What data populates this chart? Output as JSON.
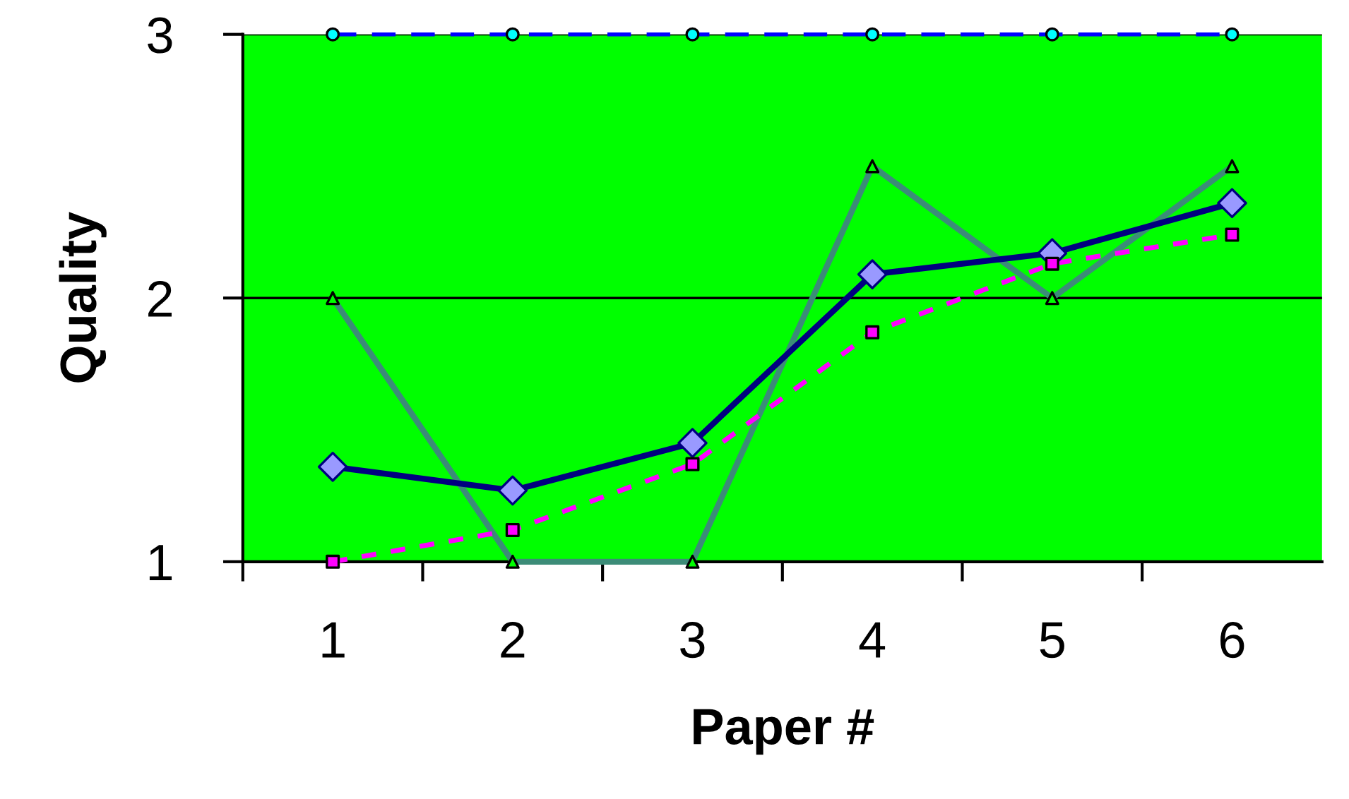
{
  "chart_data": {
    "type": "line",
    "xlabel": "Paper #",
    "ylabel": "Quality",
    "categories": [
      "1",
      "2",
      "3",
      "4",
      "5",
      "6"
    ],
    "series": [
      {
        "color": "#0000ff",
        "colors": [
          "#00ffff",
          "#00ffff",
          "#00ffff",
          "#00ffff",
          "#00ffff",
          "#00ffff"
        ],
        "marker": "circle",
        "line_style": "dashed",
        "values": [
          3,
          3,
          3,
          3,
          3,
          3
        ]
      },
      {
        "color": "#3c8c78",
        "colors": [
          "#00ff00",
          "#00ff00",
          "#00ff00",
          "#00ff00",
          "#00ff00",
          "#00ff00"
        ],
        "marker": "triangle",
        "line_style": "solid",
        "values": [
          2,
          1,
          1,
          2.5,
          2,
          2.5
        ]
      },
      {
        "color": "#000080",
        "colors": [
          "#9999ff",
          "#9999ff",
          "#9999ff",
          "#9999ff",
          "#9999ff",
          "#9999ff"
        ],
        "marker": "diamond",
        "line_style": "solid",
        "values": [
          1.36,
          1.27,
          1.45,
          2.09,
          2.17,
          2.36
        ]
      },
      {
        "color": "#ff00ff",
        "colors": [
          "#ff00ff",
          "#ff00ff",
          "#ff00ff",
          "#ff00ff",
          "#ff00ff",
          "#ff00ff"
        ],
        "marker": "square",
        "line_style": "dotted",
        "values": [
          1.0,
          1.12,
          1.37,
          1.87,
          2.13,
          2.24
        ]
      }
    ],
    "ylim": [
      1,
      3
    ],
    "yticks": [
      1,
      2,
      3
    ],
    "grid": "y",
    "legend": false
  }
}
